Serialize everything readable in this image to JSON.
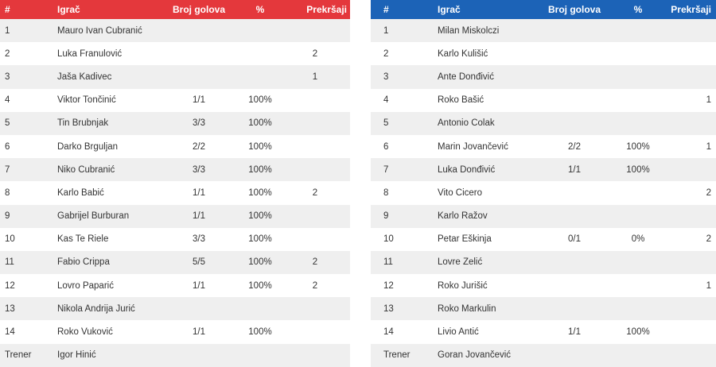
{
  "headers": {
    "num": "#",
    "player": "Igrač",
    "goals": "Broj golova",
    "pct": "%",
    "fouls": "Prekršaji"
  },
  "colors": {
    "home": "#e4383c",
    "away": "#1c63b7",
    "stripe": "#efefef"
  },
  "home": {
    "rows": [
      {
        "num": "1",
        "name": "Mauro Ivan Čubranić",
        "goals": "",
        "pct": "",
        "fouls": ""
      },
      {
        "num": "2",
        "name": "Luka Franulović",
        "goals": "",
        "pct": "",
        "fouls": "2"
      },
      {
        "num": "3",
        "name": "Jaša Kadivec",
        "goals": "",
        "pct": "",
        "fouls": "1"
      },
      {
        "num": "4",
        "name": "Viktor Tončinić",
        "goals": "1/1",
        "pct": "100%",
        "fouls": ""
      },
      {
        "num": "5",
        "name": "Tin Brubnjak",
        "goals": "3/3",
        "pct": "100%",
        "fouls": ""
      },
      {
        "num": "6",
        "name": "Darko Brguljan",
        "goals": "2/2",
        "pct": "100%",
        "fouls": ""
      },
      {
        "num": "7",
        "name": "Niko Čubranić",
        "goals": "3/3",
        "pct": "100%",
        "fouls": ""
      },
      {
        "num": "8",
        "name": "Karlo Babić",
        "goals": "1/1",
        "pct": "100%",
        "fouls": "2"
      },
      {
        "num": "9",
        "name": "Gabrijel Burburan",
        "goals": "1/1",
        "pct": "100%",
        "fouls": ""
      },
      {
        "num": "10",
        "name": "Kas Te Riele",
        "goals": "3/3",
        "pct": "100%",
        "fouls": ""
      },
      {
        "num": "11",
        "name": "Fabio Crippa",
        "goals": "5/5",
        "pct": "100%",
        "fouls": "2"
      },
      {
        "num": "12",
        "name": "Lovro Paparić",
        "goals": "1/1",
        "pct": "100%",
        "fouls": "2"
      },
      {
        "num": "13",
        "name": "Nikola Andrija Jurić",
        "goals": "",
        "pct": "",
        "fouls": ""
      },
      {
        "num": "14",
        "name": "Roko Vuković",
        "goals": "1/1",
        "pct": "100%",
        "fouls": ""
      },
      {
        "num": "Trener",
        "name": "Igor Hinić",
        "goals": "",
        "pct": "",
        "fouls": ""
      }
    ]
  },
  "away": {
    "rows": [
      {
        "num": "1",
        "name": "Milan Miskolczi",
        "goals": "",
        "pct": "",
        "fouls": ""
      },
      {
        "num": "2",
        "name": "Karlo Kulišić",
        "goals": "",
        "pct": "",
        "fouls": ""
      },
      {
        "num": "3",
        "name": "Ante Donđivić",
        "goals": "",
        "pct": "",
        "fouls": ""
      },
      {
        "num": "4",
        "name": "Roko Bašić",
        "goals": "",
        "pct": "",
        "fouls": "1"
      },
      {
        "num": "5",
        "name": "Antonio Čolak",
        "goals": "",
        "pct": "",
        "fouls": ""
      },
      {
        "num": "6",
        "name": "Marin Jovančević",
        "goals": "2/2",
        "pct": "100%",
        "fouls": "1"
      },
      {
        "num": "7",
        "name": "Luka Donđivić",
        "goals": "1/1",
        "pct": "100%",
        "fouls": ""
      },
      {
        "num": "8",
        "name": "Vito Cicero",
        "goals": "",
        "pct": "",
        "fouls": "2"
      },
      {
        "num": "9",
        "name": "Karlo Ražov",
        "goals": "",
        "pct": "",
        "fouls": ""
      },
      {
        "num": "10",
        "name": "Petar Eškinja",
        "goals": "0/1",
        "pct": "0%",
        "fouls": "2"
      },
      {
        "num": "11",
        "name": "Lovre Zelić",
        "goals": "",
        "pct": "",
        "fouls": ""
      },
      {
        "num": "12",
        "name": "Roko Jurišić",
        "goals": "",
        "pct": "",
        "fouls": "1"
      },
      {
        "num": "13",
        "name": "Roko Markulin",
        "goals": "",
        "pct": "",
        "fouls": ""
      },
      {
        "num": "14",
        "name": "Livio Antić",
        "goals": "1/1",
        "pct": "100%",
        "fouls": ""
      },
      {
        "num": "Trener",
        "name": "Goran Jovančević",
        "goals": "",
        "pct": "",
        "fouls": ""
      }
    ]
  }
}
